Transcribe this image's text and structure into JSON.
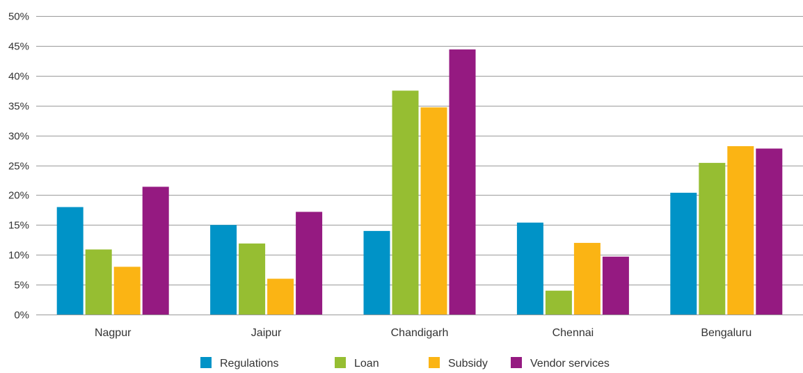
{
  "chart_data": {
    "type": "bar",
    "categories": [
      "Nagpur",
      "Jaipur",
      "Chandigarh",
      "Chennai",
      "Bengaluru"
    ],
    "series": [
      {
        "name": "Regulations",
        "color": "#0093c7",
        "values": [
          18,
          15,
          14,
          15.4,
          20.4
        ]
      },
      {
        "name": "Loan",
        "color": "#96be32",
        "values": [
          10.9,
          11.9,
          37.5,
          4,
          25.4
        ]
      },
      {
        "name": "Subsidy",
        "color": "#fbb414",
        "values": [
          8,
          6,
          34.7,
          12,
          28.2
        ]
      },
      {
        "name": "Vendor services",
        "color": "#951a81",
        "values": [
          21.4,
          17.2,
          44.4,
          9.7,
          27.8
        ]
      }
    ],
    "yticks": [
      "0%",
      "5%",
      "10%",
      "15%",
      "20%",
      "25%",
      "30%",
      "35%",
      "40%",
      "45%",
      "50%"
    ],
    "ylim": [
      0,
      50
    ],
    "grid": true,
    "legend_position": "bottom",
    "title": "",
    "xlabel": "",
    "ylabel": ""
  }
}
